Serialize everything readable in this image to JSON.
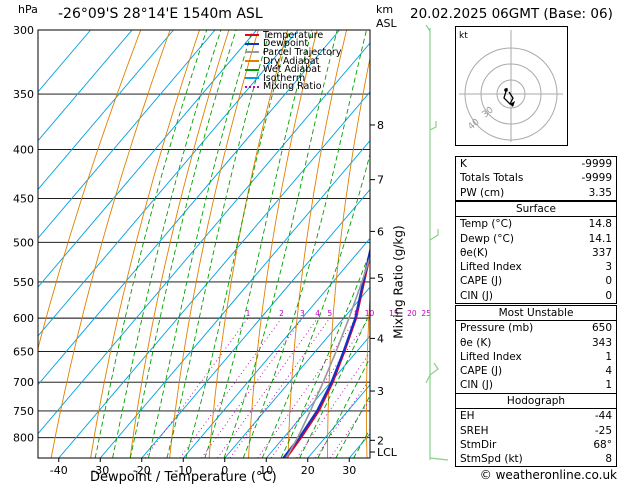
{
  "header": {
    "pressure_unit": "hPa",
    "location": "-26°09'S 28°14'E 1540m ASL",
    "height_unit_top": "km",
    "height_unit_bottom": "ASL",
    "datetime": "20.02.2025 06GMT (Base: 06)"
  },
  "axes": {
    "x_title": "Dewpoint / Temperature (°C)",
    "y2_title": "Mixing Ratio (g/kg)",
    "lcl_label": "LCL"
  },
  "legend": [
    {
      "label": "Temperature",
      "color": "#e8001c",
      "style": "solid"
    },
    {
      "label": "Dewpoint",
      "color": "#1432c8",
      "style": "solid"
    },
    {
      "label": "Parcel Trajectory",
      "color": "#999999",
      "style": "solid"
    },
    {
      "label": "Dry Adiabat",
      "color": "#e08000",
      "style": "solid"
    },
    {
      "label": "Wet Adiabat",
      "color": "#00a000",
      "style": "solid"
    },
    {
      "label": "Isotherm",
      "color": "#00a0e0",
      "style": "solid"
    },
    {
      "label": "Mixing Ratio",
      "color": "#c000c0",
      "style": "dotted"
    }
  ],
  "chart_data": {
    "type": "line",
    "title": "-26°09'S 28°14'E 1540m ASL",
    "xlabel": "Dewpoint / Temperature (°C)",
    "ylabel": "hPa",
    "xlim": [
      -45,
      35
    ],
    "x_ticks": [
      -40,
      -30,
      -20,
      -10,
      0,
      10,
      20,
      30
    ],
    "y_log_scale": true,
    "ylim": [
      300,
      840
    ],
    "y_ticks": [
      300,
      350,
      400,
      450,
      500,
      550,
      600,
      650,
      700,
      750,
      800
    ],
    "km_ticks": [
      {
        "label": "8",
        "p": 377
      },
      {
        "label": "7",
        "p": 430
      },
      {
        "label": "6",
        "p": 487
      },
      {
        "label": "5",
        "p": 545
      },
      {
        "label": "4",
        "p": 630
      },
      {
        "label": "3",
        "p": 715
      },
      {
        "label": "2",
        "p": 805
      },
      {
        "label": "LCL",
        "p": 828
      }
    ],
    "mixing_ratio_labels": [
      "1",
      "2",
      "3",
      "4",
      "5",
      "8",
      "10",
      "15",
      "20",
      "25"
    ],
    "mixing_ratio_values": [
      1,
      2,
      3,
      4,
      5,
      8,
      10,
      15,
      20,
      25
    ],
    "series": [
      {
        "name": "Temperature",
        "color": "#e8001c",
        "p": [
          840,
          800,
          750,
          700,
          650,
          600,
          550,
          500,
          450,
          400,
          355
        ],
        "t": [
          14.8,
          14.2,
          13.0,
          10.5,
          7.0,
          3.0,
          -2.5,
          -8.5,
          -15.5,
          -25.0,
          -34.0
        ]
      },
      {
        "name": "Dewpoint",
        "color": "#1432c8",
        "p": [
          840,
          800,
          750,
          700,
          650,
          600,
          550,
          500,
          450,
          400,
          355
        ],
        "t": [
          14.1,
          13.8,
          12.6,
          10.2,
          6.8,
          2.8,
          -2.7,
          -8.7,
          -15.7,
          -25.2,
          -34.3
        ]
      },
      {
        "name": "Parcel Trajectory",
        "color": "#999999",
        "p": [
          840,
          800,
          750,
          700,
          650,
          600,
          550,
          500,
          450,
          400,
          350,
          300
        ],
        "t": [
          14.8,
          13.4,
          11.0,
          8.2,
          5.0,
          1.3,
          -3.0,
          -8.0,
          -14.0,
          -21.5,
          -31.0,
          -42.0
        ]
      }
    ],
    "grid": true
  },
  "hodograph": {
    "unit_label": "kt",
    "ring_labels": [
      "40",
      "30"
    ],
    "color": "#000000"
  },
  "indices": [
    {
      "label": "K",
      "value": "-9999"
    },
    {
      "label": "Totals Totals",
      "value": "-9999"
    },
    {
      "label": "PW (cm)",
      "value": "3.35"
    }
  ],
  "surface": {
    "title": "Surface",
    "rows": [
      {
        "label": "Temp (°C)",
        "value": "14.8"
      },
      {
        "label": "Dewp (°C)",
        "value": "14.1"
      },
      {
        "label": "θe(K)",
        "value": "337"
      },
      {
        "label": "Lifted Index",
        "value": "3"
      },
      {
        "label": "CAPE (J)",
        "value": "0"
      },
      {
        "label": "CIN (J)",
        "value": "0"
      }
    ]
  },
  "most_unstable": {
    "title": "Most Unstable",
    "rows": [
      {
        "label": "Pressure (mb)",
        "value": "650"
      },
      {
        "label": "θe (K)",
        "value": "343"
      },
      {
        "label": "Lifted Index",
        "value": "1"
      },
      {
        "label": "CAPE (J)",
        "value": "4"
      },
      {
        "label": "CIN (J)",
        "value": "1"
      }
    ]
  },
  "hodograph_table": {
    "title": "Hodograph",
    "rows": [
      {
        "label": "EH",
        "value": "-44"
      },
      {
        "label": "SREH",
        "value": "-25"
      },
      {
        "label": "StmDir",
        "value": "68°"
      },
      {
        "label": "StmSpd (kt)",
        "value": "8"
      }
    ]
  },
  "footer": {
    "credit": "© weatheronline.co.uk"
  }
}
